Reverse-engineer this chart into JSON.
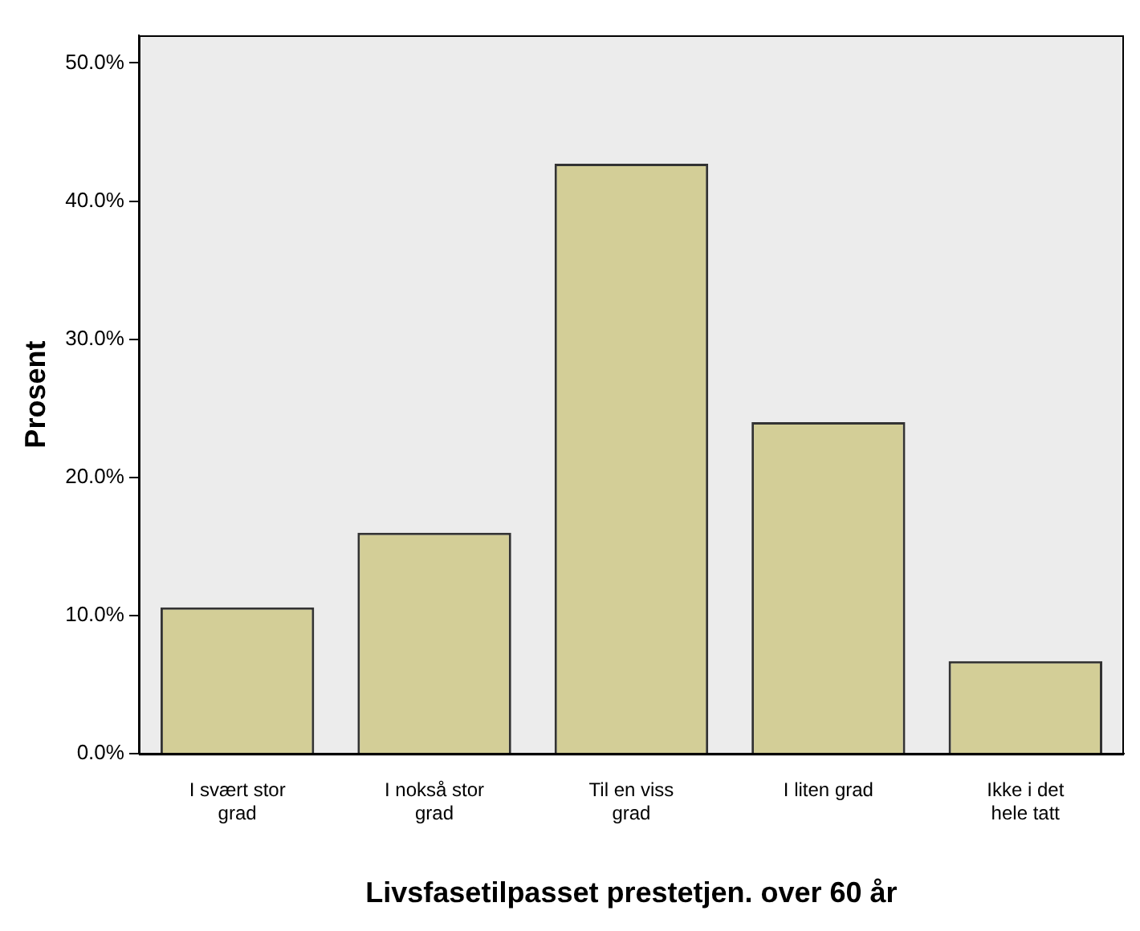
{
  "chart_data": {
    "type": "bar",
    "xlabel": "Livsfasetilpasset prestetjen. over 60 år",
    "ylabel": "Prosent",
    "categories": [
      "I svært stor grad",
      "I nokså stor grad",
      "Til en viss grad",
      "I liten grad",
      "Ikke i det hele tatt"
    ],
    "values": [
      10.6,
      16.0,
      42.7,
      24.0,
      6.7
    ],
    "color": "#d3ce97",
    "ylim": [
      0,
      52
    ],
    "yticks": [
      {
        "value": 0,
        "label": "0.0%"
      },
      {
        "value": 10,
        "label": "10.0%"
      },
      {
        "value": 20,
        "label": "20.0%"
      },
      {
        "value": 30,
        "label": "30.0%"
      },
      {
        "value": 40,
        "label": "40.0%"
      },
      {
        "value": 50,
        "label": "50.0%"
      }
    ],
    "grid": false,
    "legend": false
  }
}
